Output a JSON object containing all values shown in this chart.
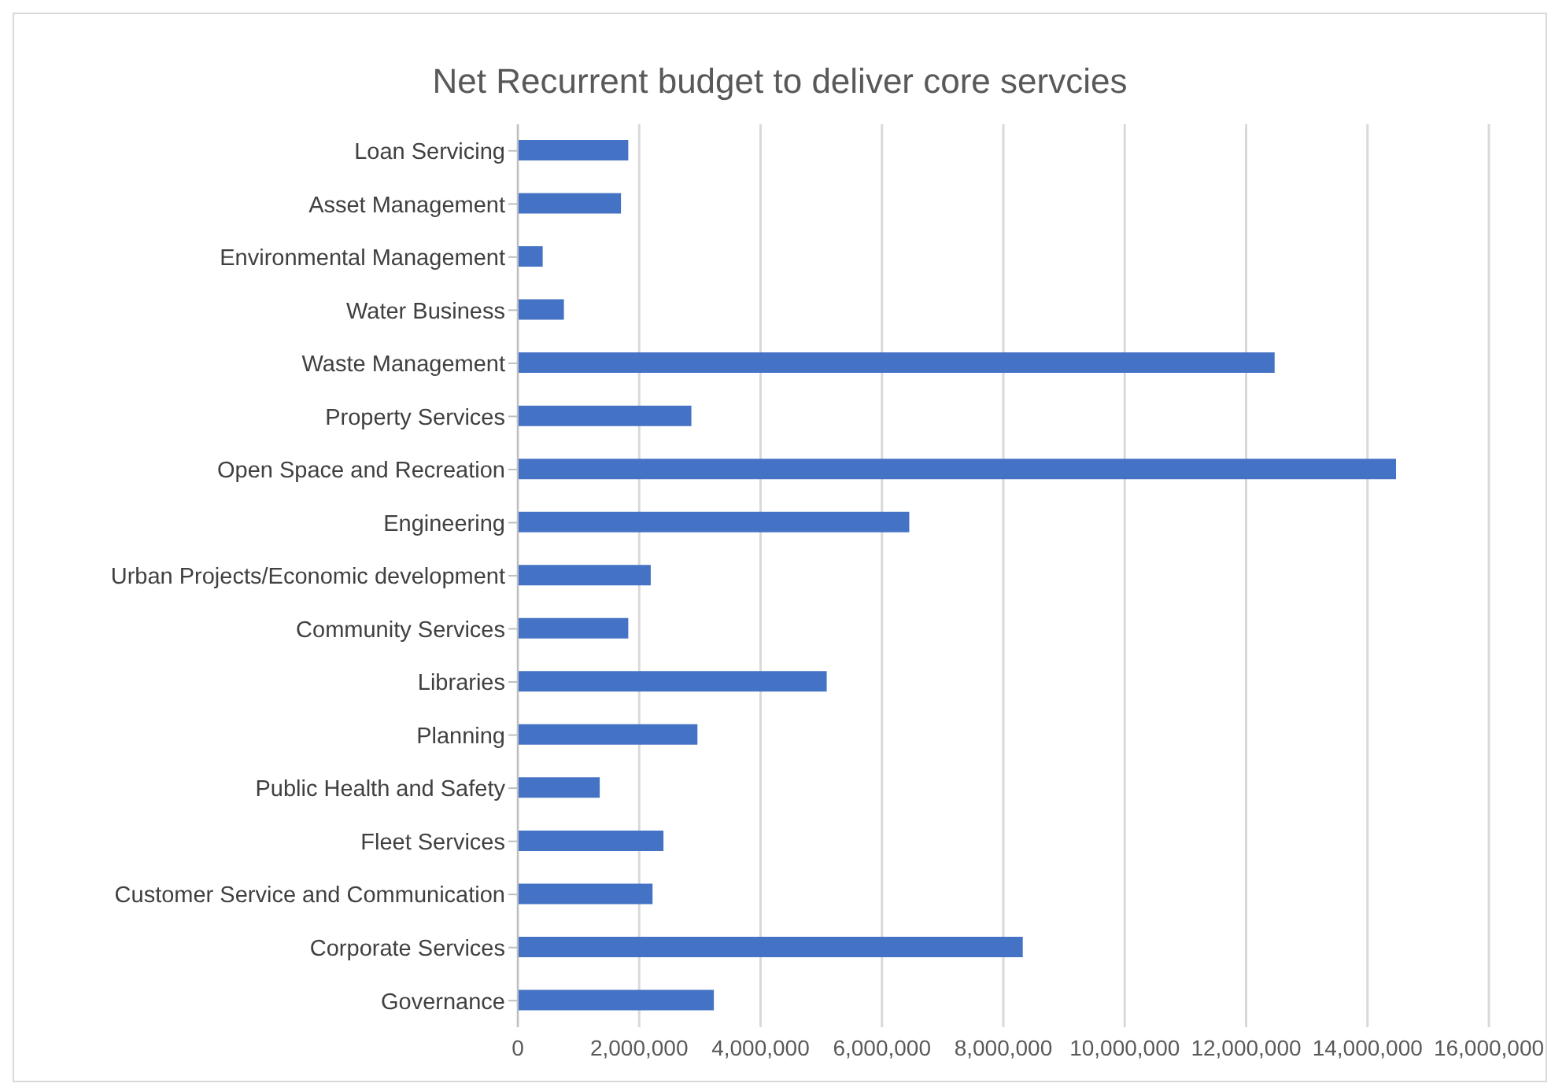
{
  "chart_data": {
    "type": "bar",
    "orientation": "horizontal",
    "title": "Net Recurrent budget to deliver core servcies",
    "categories": [
      "Loan Servicing",
      "Asset Management",
      "Environmental Management",
      "Water Business",
      "Waste Management",
      "Property Services",
      "Open Space and Recreation",
      "Engineering",
      "Urban Projects/Economic development",
      "Community Services",
      "Libraries",
      "Planning",
      "Public Health and Safety",
      "Fleet Services",
      "Customer Service and Communication",
      "Corporate Services",
      "Governance"
    ],
    "values": [
      1820000,
      1700000,
      410000,
      760000,
      12470000,
      2860000,
      14470000,
      6450000,
      2190000,
      1820000,
      5090000,
      2960000,
      1350000,
      2400000,
      2220000,
      8320000,
      3230000
    ],
    "color": "#4472c4",
    "xlim": [
      0,
      16000000
    ],
    "xticks": [
      0,
      {
        "value": 2000000,
        "label": "2,000,000"
      },
      {
        "value": 4000000,
        "label": "4,000,000"
      },
      {
        "value": 6000000,
        "label": "6,000,000"
      },
      {
        "value": 8000000,
        "label": "8,000,000"
      },
      {
        "value": 10000000,
        "label": "10,000,000"
      },
      {
        "value": 12000000,
        "label": "12,000,000"
      },
      {
        "value": 14000000,
        "label": "14,000,000"
      },
      {
        "value": 16000000,
        "label": "16,000,000"
      }
    ],
    "grid": "x",
    "legend": false
  }
}
